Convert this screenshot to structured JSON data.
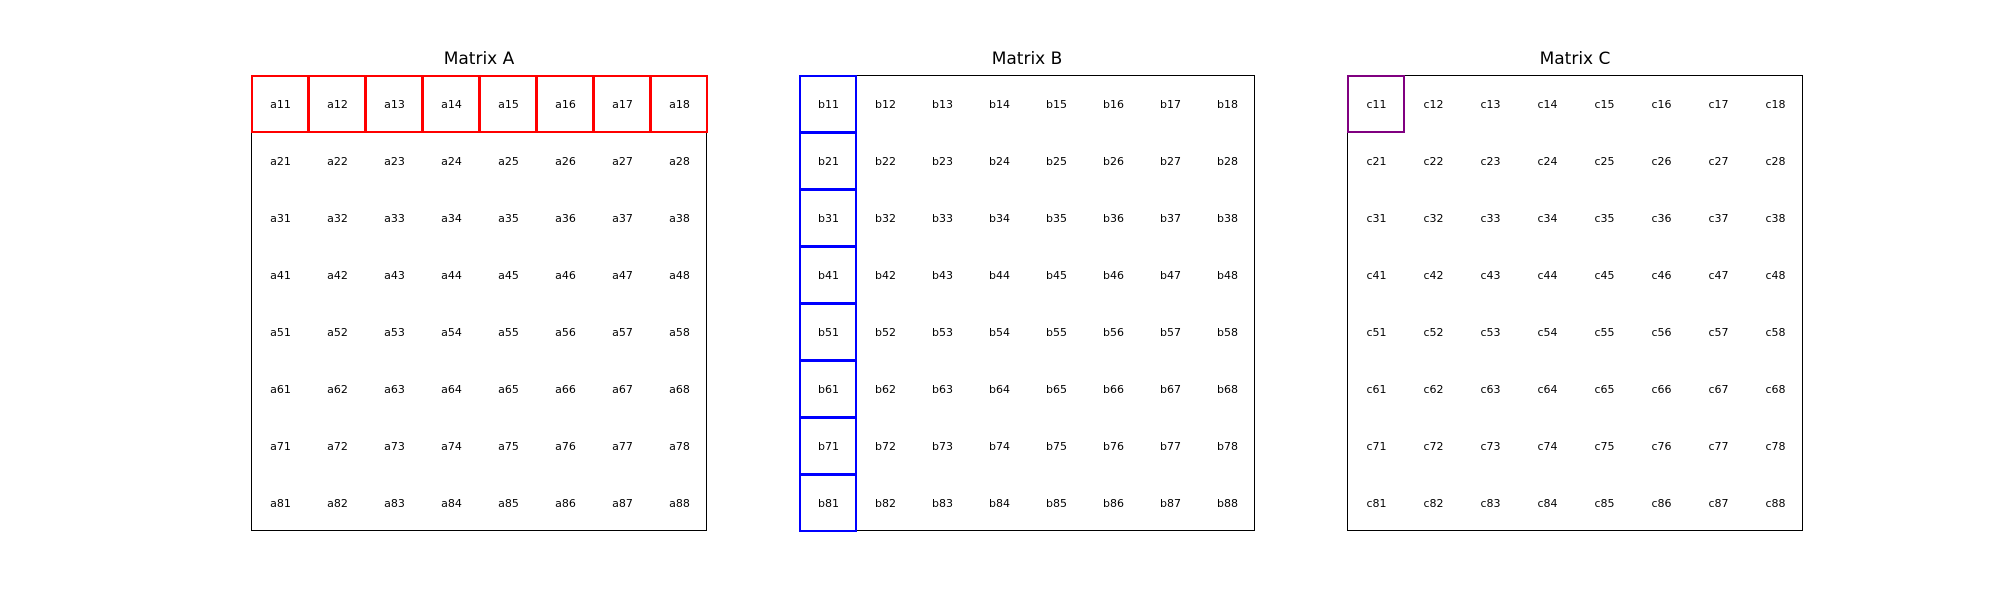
{
  "matrices": [
    {
      "id": "a",
      "title": "Matrix A",
      "highlight": {
        "kind": "row",
        "index": 1,
        "color": "#ff0000"
      },
      "cells": [
        [
          "a11",
          "a12",
          "a13",
          "a14",
          "a15",
          "a16",
          "a17",
          "a18"
        ],
        [
          "a21",
          "a22",
          "a23",
          "a24",
          "a25",
          "a26",
          "a27",
          "a28"
        ],
        [
          "a31",
          "a32",
          "a33",
          "a34",
          "a35",
          "a36",
          "a37",
          "a38"
        ],
        [
          "a41",
          "a42",
          "a43",
          "a44",
          "a45",
          "a46",
          "a47",
          "a48"
        ],
        [
          "a51",
          "a52",
          "a53",
          "a54",
          "a55",
          "a56",
          "a57",
          "a58"
        ],
        [
          "a61",
          "a62",
          "a63",
          "a64",
          "a65",
          "a66",
          "a67",
          "a68"
        ],
        [
          "a71",
          "a72",
          "a73",
          "a74",
          "a75",
          "a76",
          "a77",
          "a78"
        ],
        [
          "a81",
          "a82",
          "a83",
          "a84",
          "a85",
          "a86",
          "a87",
          "a88"
        ]
      ]
    },
    {
      "id": "b",
      "title": "Matrix B",
      "highlight": {
        "kind": "column",
        "index": 1,
        "color": "#0000ff"
      },
      "cells": [
        [
          "b11",
          "b12",
          "b13",
          "b14",
          "b15",
          "b16",
          "b17",
          "b18"
        ],
        [
          "b21",
          "b22",
          "b23",
          "b24",
          "b25",
          "b26",
          "b27",
          "b28"
        ],
        [
          "b31",
          "b32",
          "b33",
          "b34",
          "b35",
          "b36",
          "b37",
          "b38"
        ],
        [
          "b41",
          "b42",
          "b43",
          "b44",
          "b45",
          "b46",
          "b47",
          "b48"
        ],
        [
          "b51",
          "b52",
          "b53",
          "b54",
          "b55",
          "b56",
          "b57",
          "b58"
        ],
        [
          "b61",
          "b62",
          "b63",
          "b64",
          "b65",
          "b66",
          "b67",
          "b68"
        ],
        [
          "b71",
          "b72",
          "b73",
          "b74",
          "b75",
          "b76",
          "b77",
          "b78"
        ],
        [
          "b81",
          "b82",
          "b83",
          "b84",
          "b85",
          "b86",
          "b87",
          "b88"
        ]
      ]
    },
    {
      "id": "c",
      "title": "Matrix C",
      "highlight": {
        "kind": "cell",
        "row": 1,
        "column": 1,
        "color": "#800080"
      },
      "cells": [
        [
          "c11",
          "c12",
          "c13",
          "c14",
          "c15",
          "c16",
          "c17",
          "c18"
        ],
        [
          "c21",
          "c22",
          "c23",
          "c24",
          "c25",
          "c26",
          "c27",
          "c28"
        ],
        [
          "c31",
          "c32",
          "c33",
          "c34",
          "c35",
          "c36",
          "c37",
          "c38"
        ],
        [
          "c41",
          "c42",
          "c43",
          "c44",
          "c45",
          "c46",
          "c47",
          "c48"
        ],
        [
          "c51",
          "c52",
          "c53",
          "c54",
          "c55",
          "c56",
          "c57",
          "c58"
        ],
        [
          "c61",
          "c62",
          "c63",
          "c64",
          "c65",
          "c66",
          "c67",
          "c68"
        ],
        [
          "c71",
          "c72",
          "c73",
          "c74",
          "c75",
          "c76",
          "c77",
          "c78"
        ],
        [
          "c81",
          "c82",
          "c83",
          "c84",
          "c85",
          "c86",
          "c87",
          "c88"
        ]
      ]
    }
  ]
}
